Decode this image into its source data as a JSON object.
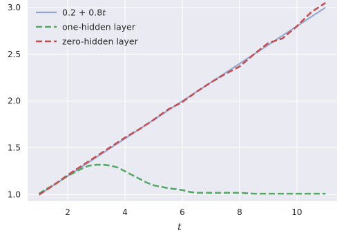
{
  "chart_data": {
    "type": "line",
    "xlabel": "t",
    "ylabel": "",
    "xlim": [
      0.6,
      11.4
    ],
    "ylim": [
      0.93,
      3.08
    ],
    "xticks": [
      2,
      4,
      6,
      8,
      10
    ],
    "yticks": [
      1.0,
      1.5,
      2.0,
      2.5,
      3.0
    ],
    "xtick_labels": [
      "2",
      "4",
      "6",
      "8",
      "10"
    ],
    "ytick_labels": [
      "1.0",
      "1.5",
      "2.0",
      "2.5",
      "3.0"
    ],
    "grid": true,
    "legend_position": "top-left",
    "series": [
      {
        "name": "0.2 + 0.8t",
        "legend_plain": "0.2 + 0.8",
        "legend_var": "t",
        "style": "solid",
        "color": "#8FA5CF",
        "x": [
          1,
          11
        ],
        "y": [
          1.0,
          3.0
        ]
      },
      {
        "name": "one-hidden layer",
        "style": "dashed",
        "color": "#55A868",
        "x": [
          1.0,
          1.25,
          1.5,
          1.75,
          2.0,
          2.25,
          2.5,
          2.75,
          3.0,
          3.25,
          3.5,
          3.75,
          4.0,
          4.25,
          4.5,
          4.75,
          5.0,
          5.5,
          6.0,
          6.25,
          6.5,
          7.0,
          7.5,
          8.0,
          8.5,
          9.0,
          9.5,
          10.0,
          10.5,
          11.0
        ],
        "y": [
          1.01,
          1.06,
          1.1,
          1.15,
          1.2,
          1.24,
          1.28,
          1.31,
          1.32,
          1.32,
          1.31,
          1.29,
          1.25,
          1.21,
          1.17,
          1.13,
          1.1,
          1.07,
          1.05,
          1.03,
          1.02,
          1.02,
          1.02,
          1.02,
          1.01,
          1.01,
          1.01,
          1.01,
          1.01,
          1.01
        ]
      },
      {
        "name": "zero-hidden layer",
        "style": "dashed",
        "color": "#C44E52",
        "x": [
          1.0,
          1.5,
          2.0,
          2.5,
          3.0,
          3.5,
          4.0,
          4.5,
          5.0,
          5.5,
          6.0,
          6.5,
          7.0,
          7.5,
          8.0,
          8.5,
          9.0,
          9.5,
          10.0,
          10.5,
          11.0
        ],
        "y": [
          1.0,
          1.1,
          1.21,
          1.31,
          1.41,
          1.51,
          1.61,
          1.7,
          1.8,
          1.91,
          1.99,
          2.1,
          2.2,
          2.29,
          2.37,
          2.5,
          2.62,
          2.67,
          2.8,
          2.95,
          3.05
        ]
      }
    ]
  }
}
